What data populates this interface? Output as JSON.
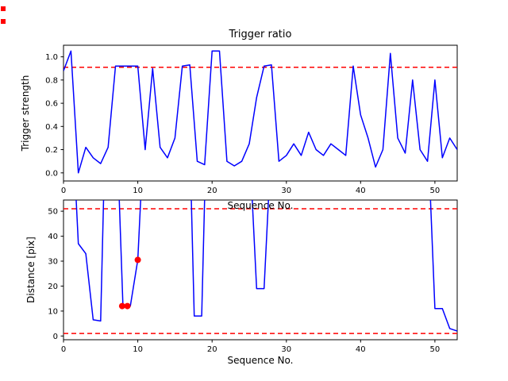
{
  "figure": {
    "background": "#ffffff"
  },
  "colors": {
    "line": "#0000ff",
    "threshold": "#ff0000",
    "marker": "#ff0000",
    "axis": "#000000",
    "text": "#000000"
  },
  "chart_data": [
    {
      "type": "line",
      "title": "Trigger ratio",
      "xlabel": "Sequence No.",
      "ylabel": "Trigger strength",
      "xlim": [
        0,
        53
      ],
      "ylim": [
        -0.07,
        1.1
      ],
      "xticks": [
        0,
        10,
        20,
        30,
        40,
        50
      ],
      "xtick_labels": [
        "0",
        "10",
        "20",
        "30",
        "40",
        "50"
      ],
      "yticks": [
        0.0,
        0.2,
        0.4,
        0.6,
        0.8,
        1.0
      ],
      "ytick_labels": [
        "0.0",
        "0.2",
        "0.4",
        "0.6",
        "0.8",
        "1.0"
      ],
      "grid": false,
      "legend": null,
      "threshold_lines": [
        0.91
      ],
      "series": [
        {
          "name": "trigger-strength",
          "x": [
            0,
            1,
            2,
            3,
            4,
            5,
            6,
            7,
            8,
            9,
            10,
            11,
            12,
            13,
            14,
            15,
            16,
            17,
            18,
            19,
            20,
            21,
            22,
            23,
            24,
            25,
            26,
            27,
            28,
            29,
            30,
            31,
            32,
            33,
            34,
            35,
            36,
            37,
            38,
            39,
            40,
            41,
            42,
            43,
            44,
            45,
            46,
            47,
            48,
            49,
            50,
            51,
            52,
            53
          ],
          "y": [
            0.88,
            1.05,
            0.0,
            0.22,
            0.13,
            0.08,
            0.22,
            0.92,
            0.92,
            0.92,
            0.92,
            0.2,
            0.9,
            0.22,
            0.13,
            0.3,
            0.92,
            0.93,
            0.1,
            0.07,
            1.05,
            1.05,
            0.1,
            0.06,
            0.1,
            0.25,
            0.65,
            0.92,
            0.93,
            0.1,
            0.15,
            0.25,
            0.15,
            0.35,
            0.2,
            0.15,
            0.25,
            0.2,
            0.15,
            0.92,
            0.5,
            0.3,
            0.05,
            0.2,
            1.03,
            0.3,
            0.17,
            0.8,
            0.2,
            0.1,
            0.8,
            0.13,
            0.3,
            0.2
          ]
        }
      ],
      "markers": []
    },
    {
      "type": "line",
      "title": "",
      "xlabel": "Sequence No.",
      "ylabel": "Distance [pix]",
      "xlim": [
        0,
        53
      ],
      "ylim": [
        -1.5,
        54.5
      ],
      "xticks": [
        0,
        10,
        20,
        30,
        40,
        50
      ],
      "xtick_labels": [
        "0",
        "10",
        "20",
        "30",
        "40",
        "50"
      ],
      "yticks": [
        0,
        10,
        20,
        30,
        40,
        50
      ],
      "ytick_labels": [
        "0",
        "10",
        "20",
        "30",
        "40",
        "50"
      ],
      "grid": false,
      "legend": null,
      "threshold_lines": [
        51,
        1
      ],
      "series": [
        {
          "name": "distance",
          "x": [
            0,
            1.7,
            2,
            3,
            4,
            5,
            5.4,
            7.5,
            8,
            9,
            10,
            10.4,
            17.2,
            17.6,
            18.6,
            19,
            25.4,
            26,
            27,
            27.6,
            49.4,
            50,
            51,
            52,
            53
          ],
          "y": [
            55,
            55,
            37,
            33,
            6.5,
            6,
            55,
            55,
            12,
            12,
            30.5,
            55,
            55,
            8,
            8,
            55,
            55,
            19,
            19,
            55,
            55,
            11,
            11,
            3,
            2
          ]
        }
      ],
      "markers": [
        [
          7.9,
          12
        ],
        [
          8.6,
          12
        ],
        [
          10,
          30.5
        ]
      ]
    }
  ]
}
